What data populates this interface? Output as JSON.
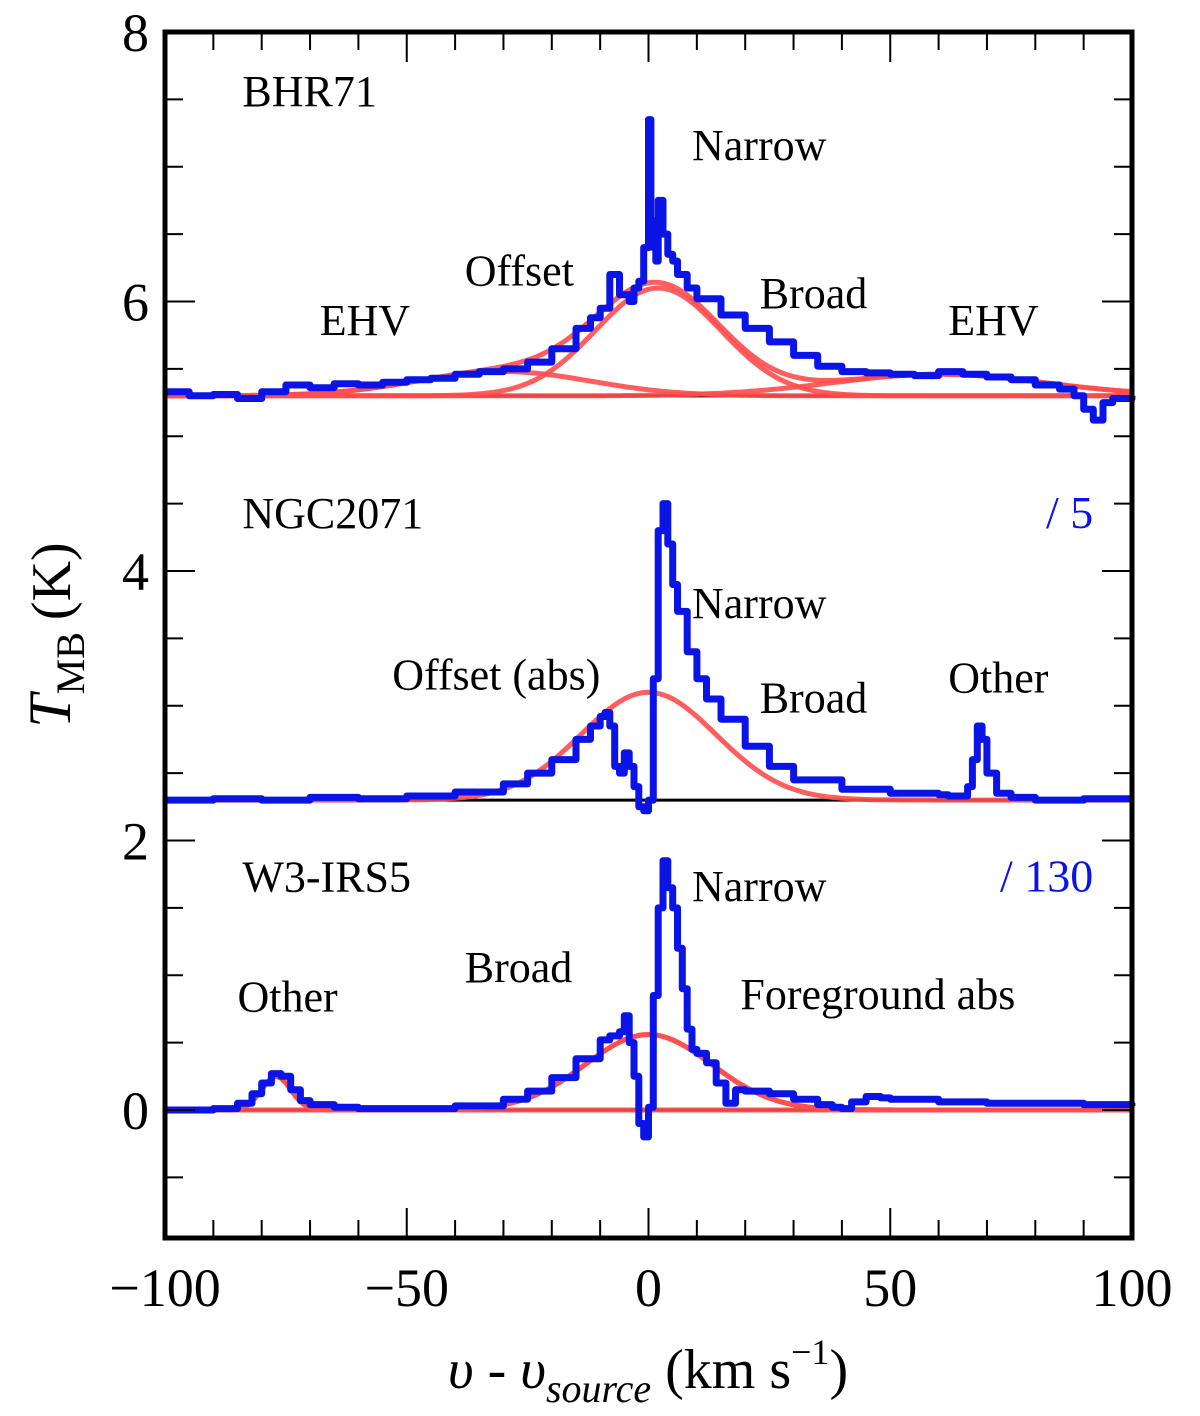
{
  "chart_data": {
    "type": "line",
    "title": "",
    "xlabel": {
      "main": "υ - υ",
      "sub": "source",
      "unit": "(km s",
      "exp": "−1",
      "close": ")"
    },
    "ylabel": {
      "main": "T",
      "sub": "MB",
      "unit": "(K)"
    },
    "xlim": [
      -100,
      100
    ],
    "ylim": [
      -0.95,
      8
    ],
    "x_ticks": [
      {
        "value": -100,
        "label": "−100"
      },
      {
        "value": -50,
        "label": "−50"
      },
      {
        "value": 0,
        "label": "0"
      },
      {
        "value": 50,
        "label": "50"
      },
      {
        "value": 100,
        "label": "100"
      }
    ],
    "y_ticks": [
      {
        "value": 0,
        "label": "0"
      },
      {
        "value": 2,
        "label": "2"
      },
      {
        "value": 4,
        "label": "4"
      },
      {
        "value": 6,
        "label": "6"
      },
      {
        "value": 8,
        "label": "8"
      }
    ],
    "colors": {
      "data": "#0a14e6",
      "fit": "#ff4d4d",
      "baseline": "#000000"
    },
    "spectra": [
      {
        "name": "BHR71",
        "baseline": 5.3,
        "scale_label": "",
        "data": {
          "x": [
            -100,
            -95,
            -90,
            -85,
            -80,
            -75,
            -70,
            -65,
            -60,
            -55,
            -50,
            -45,
            -40,
            -35,
            -30,
            -25,
            -20,
            -15,
            -12,
            -10,
            -8,
            -6,
            -4,
            -3,
            -2,
            -1,
            0,
            0.5,
            1,
            1.5,
            2,
            3,
            4,
            5,
            6,
            8,
            10,
            15,
            20,
            25,
            30,
            35,
            40,
            45,
            50,
            55,
            60,
            65,
            70,
            75,
            80,
            85,
            88,
            90,
            92,
            94,
            96,
            100
          ],
          "y": [
            5.33,
            5.3,
            5.31,
            5.28,
            5.33,
            5.38,
            5.36,
            5.39,
            5.38,
            5.4,
            5.42,
            5.43,
            5.46,
            5.48,
            5.5,
            5.55,
            5.65,
            5.8,
            5.88,
            5.95,
            6.2,
            6.05,
            6.0,
            6.1,
            6.15,
            6.4,
            7.35,
            6.6,
            6.4,
            6.3,
            6.75,
            6.5,
            6.35,
            6.3,
            6.2,
            6.1,
            6.02,
            5.9,
            5.8,
            5.7,
            5.6,
            5.52,
            5.48,
            5.47,
            5.46,
            5.45,
            5.48,
            5.46,
            5.44,
            5.42,
            5.38,
            5.35,
            5.3,
            5.2,
            5.12,
            5.25,
            5.28,
            5.3
          ]
        },
        "fits": [
          {
            "label": "Broad",
            "amp": 0.8,
            "center": 2,
            "width": 13
          },
          {
            "label": "EHV",
            "amp": 0.18,
            "center": -30,
            "width": 18
          },
          {
            "label": "EHV",
            "amp": 0.16,
            "center": 60,
            "width": 22
          }
        ],
        "annotations": [
          {
            "text": "BHR71",
            "x": -84,
            "y": 7.45
          },
          {
            "text": "Narrow",
            "x": 9,
            "y": 7.05
          },
          {
            "text": "Offset",
            "x": -38,
            "y": 6.12
          },
          {
            "text": "Broad",
            "x": 23,
            "y": 5.95
          },
          {
            "text": "EHV",
            "x": -68,
            "y": 5.75
          },
          {
            "text": "EHV",
            "x": 62,
            "y": 5.75
          }
        ]
      },
      {
        "name": "NGC2071",
        "baseline": 2.3,
        "scale_label": "/ 5",
        "data": {
          "x": [
            -100,
            -90,
            -80,
            -70,
            -60,
            -50,
            -40,
            -30,
            -25,
            -20,
            -15,
            -12,
            -10,
            -9,
            -8,
            -7,
            -6,
            -5,
            -4,
            -3,
            -2,
            -1,
            0,
            1,
            2,
            3,
            4,
            5,
            6,
            8,
            10,
            12,
            15,
            20,
            25,
            30,
            40,
            50,
            55,
            60,
            62,
            64,
            66,
            67,
            68,
            69,
            70,
            72,
            75,
            80,
            90,
            100
          ],
          "y": [
            2.3,
            2.31,
            2.3,
            2.32,
            2.31,
            2.33,
            2.36,
            2.42,
            2.5,
            2.6,
            2.75,
            2.85,
            2.92,
            2.95,
            2.85,
            2.55,
            2.5,
            2.65,
            2.55,
            2.4,
            2.25,
            2.22,
            2.3,
            3.2,
            4.3,
            4.5,
            4.2,
            3.9,
            3.7,
            3.4,
            3.2,
            3.05,
            2.9,
            2.7,
            2.55,
            2.45,
            2.38,
            2.35,
            2.35,
            2.34,
            2.33,
            2.33,
            2.4,
            2.6,
            2.85,
            2.75,
            2.5,
            2.35,
            2.32,
            2.3,
            2.31,
            2.31
          ]
        },
        "fits": [
          {
            "label": "Broad",
            "amp": 0.8,
            "center": 0,
            "width": 14
          }
        ],
        "annotations": [
          {
            "text": "NGC2071",
            "x": -84,
            "y": 4.32
          },
          {
            "text": "Narrow",
            "x": 9,
            "y": 3.65
          },
          {
            "text": "Offset (abs)",
            "x": -53,
            "y": 3.12
          },
          {
            "text": "Broad",
            "x": 23,
            "y": 2.95
          },
          {
            "text": "Other",
            "x": 62,
            "y": 3.1
          }
        ]
      },
      {
        "name": "W3-IRS5",
        "baseline": 0,
        "scale_label": "/ 130",
        "data": {
          "x": [
            -100,
            -90,
            -85,
            -82,
            -80,
            -78,
            -76,
            -74,
            -72,
            -70,
            -65,
            -60,
            -50,
            -40,
            -30,
            -25,
            -20,
            -15,
            -10,
            -8,
            -6,
            -5,
            -4,
            -3,
            -2,
            -1,
            0,
            1,
            2,
            3,
            4,
            5,
            6,
            7,
            8,
            9,
            10,
            12,
            14,
            16,
            18,
            20,
            25,
            30,
            35,
            38,
            40,
            42,
            45,
            48,
            50,
            60,
            70,
            80,
            90,
            100
          ],
          "y": [
            0.0,
            0.01,
            0.05,
            0.12,
            0.2,
            0.27,
            0.25,
            0.15,
            0.07,
            0.04,
            0.02,
            0.01,
            0.01,
            0.03,
            0.08,
            0.14,
            0.24,
            0.38,
            0.52,
            0.55,
            0.58,
            0.7,
            0.5,
            0.25,
            -0.1,
            -0.2,
            0.02,
            0.85,
            1.5,
            1.85,
            1.65,
            1.5,
            1.2,
            0.9,
            0.6,
            0.45,
            0.42,
            0.35,
            0.2,
            0.05,
            0.15,
            0.14,
            0.12,
            0.08,
            0.04,
            0.02,
            0.01,
            0.06,
            0.1,
            0.09,
            0.08,
            0.06,
            0.05,
            0.05,
            0.04,
            0.03
          ]
        },
        "fits": [
          {
            "label": "Broad",
            "amp": 0.56,
            "center": 0,
            "width": 13
          },
          {
            "label": "Other",
            "amp": 0.25,
            "center": -77,
            "width": 3
          }
        ],
        "annotations": [
          {
            "text": "W3-IRS5",
            "x": -84,
            "y": 1.62
          },
          {
            "text": "Narrow",
            "x": 9,
            "y": 1.55
          },
          {
            "text": "Broad",
            "x": -38,
            "y": 0.95
          },
          {
            "text": "Other",
            "x": -85,
            "y": 0.73
          },
          {
            "text": "Foreground abs",
            "x": 19,
            "y": 0.75
          }
        ]
      }
    ]
  }
}
